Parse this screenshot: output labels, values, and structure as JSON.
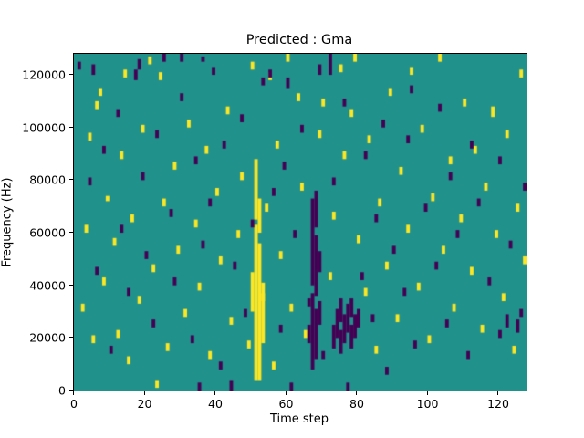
{
  "chart_data": {
    "type": "heatmap",
    "title": "Predicted : Gma",
    "xlabel": "Time step",
    "ylabel": "Frequency (Hz)",
    "xlim": [
      0,
      128
    ],
    "ylim": [
      0,
      128000
    ],
    "xticks": [
      0,
      20,
      40,
      60,
      80,
      100,
      120
    ],
    "yticks": [
      0,
      20000,
      40000,
      60000,
      80000,
      100000,
      120000
    ],
    "grid": false,
    "legend": false,
    "colors": {
      "background": "#21918c",
      "high": "#fde725",
      "low": "#440154",
      "axes": "#000000",
      "figure_background": "#ffffff"
    },
    "cell_grid": {
      "cols": 128,
      "rows": 128,
      "hz_per_row": 1000
    },
    "yellow_segments": [
      [
        51,
        4,
        62
      ],
      [
        52,
        4,
        55
      ],
      [
        51,
        65,
        87
      ],
      [
        52,
        60,
        72
      ],
      [
        53,
        18,
        40
      ],
      [
        50,
        30,
        44
      ],
      [
        3,
        60,
        62
      ],
      [
        4,
        95,
        97
      ],
      [
        5,
        18,
        20
      ],
      [
        6,
        107,
        109
      ],
      [
        7,
        112,
        114
      ],
      [
        8,
        40,
        42
      ],
      [
        9,
        72,
        73
      ],
      [
        11,
        55,
        57
      ],
      [
        12,
        20,
        22
      ],
      [
        13,
        88,
        90
      ],
      [
        14,
        119,
        121
      ],
      [
        15,
        10,
        12
      ],
      [
        16,
        64,
        66
      ],
      [
        18,
        33,
        35
      ],
      [
        19,
        98,
        100
      ],
      [
        21,
        124,
        126
      ],
      [
        22,
        45,
        47
      ],
      [
        23,
        1,
        3
      ],
      [
        24,
        118,
        120
      ],
      [
        25,
        70,
        72
      ],
      [
        26,
        15,
        17
      ],
      [
        28,
        84,
        86
      ],
      [
        29,
        52,
        54
      ],
      [
        31,
        28,
        30
      ],
      [
        32,
        100,
        102
      ],
      [
        34,
        62,
        64
      ],
      [
        35,
        38,
        40
      ],
      [
        37,
        90,
        92
      ],
      [
        38,
        12,
        14
      ],
      [
        40,
        74,
        76
      ],
      [
        41,
        48,
        50
      ],
      [
        43,
        105,
        107
      ],
      [
        44,
        25,
        27
      ],
      [
        46,
        58,
        60
      ],
      [
        47,
        80,
        82
      ],
      [
        49,
        16,
        18
      ],
      [
        50,
        122,
        124
      ],
      [
        53,
        34,
        36
      ],
      [
        54,
        68,
        70
      ],
      [
        55,
        118,
        120
      ],
      [
        56,
        8,
        10
      ],
      [
        57,
        92,
        94
      ],
      [
        58,
        50,
        52
      ],
      [
        60,
        125,
        127
      ],
      [
        61,
        30,
        32
      ],
      [
        63,
        110,
        112
      ],
      [
        64,
        76,
        78
      ],
      [
        65,
        20,
        22
      ],
      [
        69,
        96,
        98
      ],
      [
        70,
        108,
        110
      ],
      [
        72,
        42,
        44
      ],
      [
        73,
        65,
        67
      ],
      [
        75,
        121,
        123
      ],
      [
        76,
        88,
        90
      ],
      [
        78,
        104,
        106
      ],
      [
        79,
        125,
        127
      ],
      [
        80,
        56,
        58
      ],
      [
        82,
        36,
        38
      ],
      [
        83,
        94,
        96
      ],
      [
        85,
        14,
        16
      ],
      [
        86,
        70,
        72
      ],
      [
        88,
        46,
        48
      ],
      [
        89,
        112,
        114
      ],
      [
        91,
        26,
        28
      ],
      [
        92,
        82,
        84
      ],
      [
        94,
        60,
        62
      ],
      [
        95,
        120,
        122
      ],
      [
        97,
        38,
        40
      ],
      [
        98,
        98,
        100
      ],
      [
        100,
        18,
        20
      ],
      [
        101,
        72,
        74
      ],
      [
        103,
        125,
        127
      ],
      [
        104,
        52,
        54
      ],
      [
        106,
        86,
        88
      ],
      [
        107,
        30,
        32
      ],
      [
        109,
        64,
        66
      ],
      [
        110,
        108,
        110
      ],
      [
        112,
        44,
        46
      ],
      [
        113,
        90,
        92
      ],
      [
        115,
        22,
        24
      ],
      [
        116,
        76,
        78
      ],
      [
        118,
        104,
        107
      ],
      [
        119,
        58,
        60
      ],
      [
        121,
        34,
        36
      ],
      [
        122,
        96,
        98
      ],
      [
        124,
        14,
        16
      ],
      [
        125,
        68,
        70
      ],
      [
        126,
        119,
        121
      ],
      [
        127,
        48,
        50
      ],
      [
        2,
        30,
        32
      ]
    ],
    "purple_segments": [
      [
        67,
        8,
        36
      ],
      [
        67,
        40,
        72
      ],
      [
        68,
        12,
        30
      ],
      [
        68,
        36,
        58
      ],
      [
        68,
        62,
        75
      ],
      [
        66,
        18,
        24
      ],
      [
        69,
        25,
        33
      ],
      [
        69,
        45,
        52
      ],
      [
        73,
        16,
        24
      ],
      [
        74,
        20,
        30
      ],
      [
        75,
        14,
        22
      ],
      [
        75,
        26,
        34
      ],
      [
        76,
        18,
        28
      ],
      [
        77,
        22,
        32
      ],
      [
        78,
        16,
        24
      ],
      [
        79,
        20,
        28
      ],
      [
        80,
        24,
        30
      ],
      [
        78,
        28,
        34
      ],
      [
        1,
        122,
        124
      ],
      [
        4,
        78,
        80
      ],
      [
        5,
        120,
        123
      ],
      [
        6,
        44,
        46
      ],
      [
        8,
        90,
        92
      ],
      [
        10,
        14,
        16
      ],
      [
        12,
        104,
        106
      ],
      [
        13,
        60,
        62
      ],
      [
        15,
        36,
        38
      ],
      [
        17,
        118,
        121
      ],
      [
        18,
        122,
        125
      ],
      [
        19,
        80,
        82
      ],
      [
        20,
        50,
        52
      ],
      [
        22,
        24,
        26
      ],
      [
        23,
        96,
        98
      ],
      [
        25,
        125,
        127
      ],
      [
        27,
        66,
        68
      ],
      [
        28,
        40,
        42
      ],
      [
        30,
        110,
        112
      ],
      [
        30,
        125,
        127
      ],
      [
        33,
        18,
        20
      ],
      [
        34,
        86,
        88
      ],
      [
        36,
        54,
        56
      ],
      [
        36,
        125,
        126
      ],
      [
        38,
        70,
        72
      ],
      [
        39,
        120,
        122
      ],
      [
        41,
        8,
        10
      ],
      [
        42,
        92,
        94
      ],
      [
        44,
        0,
        3
      ],
      [
        45,
        46,
        48
      ],
      [
        47,
        102,
        104
      ],
      [
        48,
        28,
        30
      ],
      [
        50,
        62,
        64
      ],
      [
        53,
        116,
        118
      ],
      [
        55,
        119,
        121
      ],
      [
        56,
        74,
        76
      ],
      [
        58,
        22,
        24
      ],
      [
        59,
        84,
        86
      ],
      [
        60,
        115,
        118
      ],
      [
        61,
        0,
        2
      ],
      [
        62,
        58,
        60
      ],
      [
        64,
        98,
        100
      ],
      [
        66,
        32,
        34
      ],
      [
        69,
        120,
        123
      ],
      [
        70,
        12,
        14
      ],
      [
        72,
        120,
        127
      ],
      [
        73,
        78,
        80
      ],
      [
        76,
        108,
        110
      ],
      [
        77,
        0,
        2
      ],
      [
        81,
        42,
        44
      ],
      [
        82,
        88,
        90
      ],
      [
        84,
        26,
        28
      ],
      [
        85,
        64,
        66
      ],
      [
        87,
        100,
        102
      ],
      [
        88,
        6,
        8
      ],
      [
        90,
        52,
        54
      ],
      [
        93,
        36,
        38
      ],
      [
        94,
        94,
        96
      ],
      [
        95,
        113,
        115
      ],
      [
        96,
        16,
        18
      ],
      [
        99,
        68,
        70
      ],
      [
        102,
        46,
        48
      ],
      [
        103,
        106,
        108
      ],
      [
        105,
        24,
        26
      ],
      [
        106,
        80,
        82
      ],
      [
        108,
        58,
        60
      ],
      [
        111,
        12,
        14
      ],
      [
        112,
        92,
        94
      ],
      [
        114,
        70,
        72
      ],
      [
        117,
        40,
        42
      ],
      [
        120,
        86,
        88
      ],
      [
        120,
        20,
        22
      ],
      [
        123,
        54,
        56
      ],
      [
        126,
        28,
        30
      ],
      [
        127,
        76,
        78
      ],
      [
        125,
        22,
        26
      ],
      [
        122,
        24,
        28
      ],
      [
        35,
        0,
        2
      ]
    ]
  }
}
